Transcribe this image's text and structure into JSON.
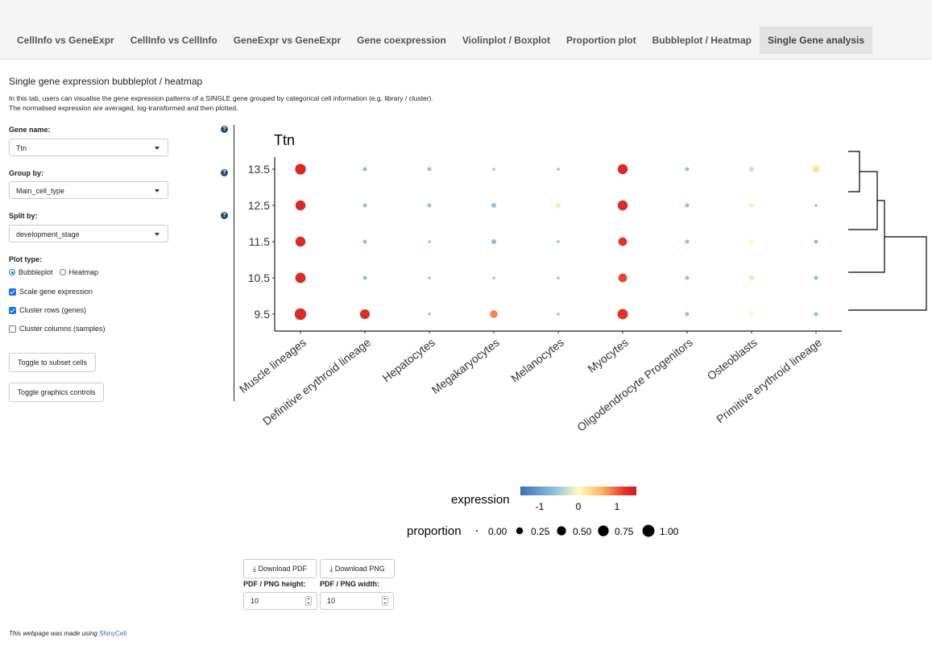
{
  "tabs": [
    {
      "label": "CellInfo vs GeneExpr",
      "active": false
    },
    {
      "label": "CellInfo vs CellInfo",
      "active": false
    },
    {
      "label": "GeneExpr vs GeneExpr",
      "active": false
    },
    {
      "label": "Gene coexpression",
      "active": false
    },
    {
      "label": "Violinplot / Boxplot",
      "active": false
    },
    {
      "label": "Proportion plot",
      "active": false
    },
    {
      "label": "Bubbleplot / Heatmap",
      "active": false
    },
    {
      "label": "Single Gene analysis",
      "active": true
    }
  ],
  "page": {
    "title": "Single gene expression bubbleplot / heatmap",
    "desc1": "In this tab, users can visualise the gene expression patterns of a SINGLE gene grouped by categorical cell information (e.g. library / cluster).",
    "desc2": "The normalised expression are averaged, log-transformed and then plotted."
  },
  "controls": {
    "gene_label": "Gene name:",
    "gene_value": "Ttn",
    "group_label": "Group by:",
    "group_value": "Main_cell_type",
    "split_label": "Split by:",
    "split_value": "development_stage",
    "plot_type_label": "Plot type:",
    "opt_bubble": "Bubbleplot",
    "opt_heatmap": "Heatmap",
    "scale_label": "Scale gene expression",
    "cluster_rows_label": "Cluster rows (genes)",
    "cluster_cols_label": "Cluster columns (samples)",
    "subset_button": "Toggle to subset cells",
    "graphics_button": "Toggle graphics controls",
    "help_glyph": "?"
  },
  "download": {
    "pdf_button": "Download PDF",
    "png_button": "Download PNG",
    "height_label": "PDF / PNG height:",
    "width_label": "PDF / PNG width:",
    "height_value": "10",
    "width_value": "10"
  },
  "footer": {
    "text": "This webpage was made using",
    "link": "ShinyCell"
  },
  "chart_data": {
    "type": "bubble",
    "title": "Ttn",
    "categories": [
      "Muscle lineages",
      "Definitive erythroid lineage",
      "Hepatocytes",
      "Megakaryocytes",
      "Melanocytes",
      "Myocytes",
      "Oligodendrocyte Progenitors",
      "Osteoblasts",
      "Primitive erythroid lineage"
    ],
    "rows": [
      "13.5",
      "12.5",
      "11.5",
      "10.5",
      "9.5"
    ],
    "expression": [
      [
        1.25,
        -0.35,
        -0.35,
        -0.4,
        -0.45,
        1.22,
        -0.35,
        -0.05,
        0.35
      ],
      [
        1.25,
        -0.35,
        -0.35,
        -0.3,
        0.3,
        1.2,
        -0.35,
        0.15,
        -0.4
      ],
      [
        1.2,
        -0.35,
        -0.35,
        -0.35,
        -0.4,
        1.05,
        -0.35,
        0.2,
        -0.35
      ],
      [
        1.2,
        -0.35,
        -0.4,
        -0.4,
        -0.45,
        0.95,
        -0.35,
        0.3,
        -0.35
      ],
      [
        1.2,
        1.15,
        -0.35,
        0.75,
        -0.4,
        1.0,
        -0.35,
        0.2,
        -0.35
      ]
    ],
    "proportion": [
      [
        0.75,
        0.05,
        0.05,
        0.01,
        0.01,
        0.65,
        0.05,
        0.1,
        0.25
      ],
      [
        0.65,
        0.05,
        0.05,
        0.1,
        0.1,
        0.65,
        0.05,
        0.1,
        0.01
      ],
      [
        0.65,
        0.05,
        0.01,
        0.1,
        0.01,
        0.45,
        0.05,
        0.1,
        0.05
      ],
      [
        0.7,
        0.05,
        0.01,
        0.01,
        0.01,
        0.45,
        0.05,
        0.15,
        0.05
      ],
      [
        0.9,
        0.6,
        0.01,
        0.35,
        0.01,
        0.7,
        0.05,
        0.1,
        0.05
      ]
    ],
    "legend": {
      "expression_title": "expression",
      "expression_ticks": [
        "-1",
        "0",
        "1"
      ],
      "proportion_title": "proportion",
      "proportion_values": [
        "0.00",
        "0.25",
        "0.50",
        "0.75",
        "1.00"
      ],
      "colors": [
        "#3b6eb3",
        "#90c4e0",
        "#fff9c4",
        "#fdb863",
        "#e2352a",
        "#cc1f1f"
      ]
    }
  }
}
